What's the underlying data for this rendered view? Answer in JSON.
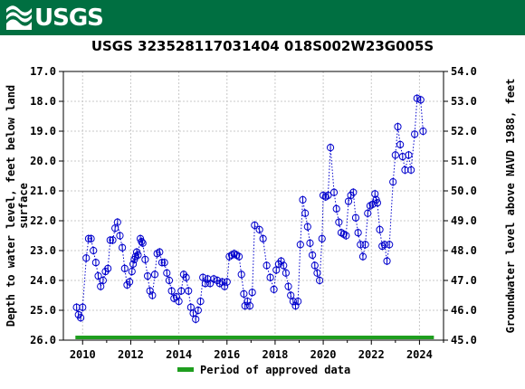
{
  "banner": {
    "logo_text": "USGS",
    "color": "#006f41"
  },
  "chart_data": {
    "type": "scatter",
    "title": "USGS 323528117031404 018S002W23G005S",
    "ylabel_left": "Depth to water level, feet below land surface",
    "ylabel_left_lines": [
      "Depth to water level, feet below land",
      "surface"
    ],
    "ylabel_right": "Groundwater level above NAVD 1988, feet",
    "x_ticks": [
      2010,
      2012,
      2014,
      2016,
      2018,
      2020,
      2022,
      2024
    ],
    "xlim": [
      2009.2,
      2025.0
    ],
    "y_ticks_left": [
      "17.0",
      "18.0",
      "19.0",
      "20.0",
      "21.0",
      "22.0",
      "23.0",
      "24.0",
      "25.0",
      "26.0"
    ],
    "ylim_left": [
      17.0,
      26.0
    ],
    "y_ticks_right": [
      "45.0",
      "46.0",
      "47.0",
      "48.0",
      "49.0",
      "50.0",
      "51.0",
      "52.0",
      "53.0",
      "54.0"
    ],
    "ylim_right": [
      54.0,
      45.0
    ],
    "marker_color": "#0000cc",
    "line_style": "dotted",
    "grid": true,
    "legend_position": "bottom",
    "legend": [
      {
        "label": "Period of approved data",
        "color": "#1f9e1f"
      }
    ],
    "approved_period": [
      2009.7,
      2024.6
    ],
    "series": [
      {
        "points": [
          [
            2009.75,
            24.9
          ],
          [
            2009.83,
            25.15
          ],
          [
            2009.92,
            25.25
          ],
          [
            2010.0,
            24.9
          ],
          [
            2010.15,
            23.25
          ],
          [
            2010.25,
            22.6
          ],
          [
            2010.35,
            22.6
          ],
          [
            2010.45,
            23.0
          ],
          [
            2010.55,
            23.4
          ],
          [
            2010.65,
            23.85
          ],
          [
            2010.75,
            24.2
          ],
          [
            2010.85,
            24.0
          ],
          [
            2010.95,
            23.7
          ],
          [
            2011.05,
            23.6
          ],
          [
            2011.15,
            22.65
          ],
          [
            2011.25,
            22.65
          ],
          [
            2011.35,
            22.25
          ],
          [
            2011.45,
            22.05
          ],
          [
            2011.55,
            22.5
          ],
          [
            2011.65,
            22.9
          ],
          [
            2011.75,
            23.6
          ],
          [
            2011.85,
            24.15
          ],
          [
            2011.95,
            24.05
          ],
          [
            2012.05,
            23.7
          ],
          [
            2012.1,
            23.45
          ],
          [
            2012.15,
            23.3
          ],
          [
            2012.2,
            23.2
          ],
          [
            2012.25,
            23.05
          ],
          [
            2012.3,
            23.15
          ],
          [
            2012.4,
            22.6
          ],
          [
            2012.45,
            22.7
          ],
          [
            2012.5,
            22.75
          ],
          [
            2012.6,
            23.3
          ],
          [
            2012.7,
            23.85
          ],
          [
            2012.8,
            24.35
          ],
          [
            2012.9,
            24.5
          ],
          [
            2013.0,
            23.8
          ],
          [
            2013.1,
            23.1
          ],
          [
            2013.2,
            23.05
          ],
          [
            2013.3,
            23.4
          ],
          [
            2013.4,
            23.4
          ],
          [
            2013.5,
            23.75
          ],
          [
            2013.6,
            24.0
          ],
          [
            2013.7,
            24.35
          ],
          [
            2013.8,
            24.6
          ],
          [
            2013.9,
            24.55
          ],
          [
            2014.0,
            24.7
          ],
          [
            2014.1,
            24.35
          ],
          [
            2014.2,
            23.8
          ],
          [
            2014.3,
            23.9
          ],
          [
            2014.4,
            24.35
          ],
          [
            2014.5,
            24.9
          ],
          [
            2014.6,
            25.1
          ],
          [
            2014.7,
            25.3
          ],
          [
            2014.8,
            25.0
          ],
          [
            2014.9,
            24.7
          ],
          [
            2015.0,
            23.9
          ],
          [
            2015.1,
            24.1
          ],
          [
            2015.2,
            23.95
          ],
          [
            2015.3,
            24.1
          ],
          [
            2015.45,
            23.95
          ],
          [
            2015.6,
            24.0
          ],
          [
            2015.7,
            24.1
          ],
          [
            2015.8,
            24.05
          ],
          [
            2015.9,
            24.2
          ],
          [
            2016.0,
            24.05
          ],
          [
            2016.1,
            23.2
          ],
          [
            2016.2,
            23.15
          ],
          [
            2016.3,
            23.1
          ],
          [
            2016.4,
            23.15
          ],
          [
            2016.5,
            23.2
          ],
          [
            2016.6,
            23.8
          ],
          [
            2016.7,
            24.45
          ],
          [
            2016.75,
            24.85
          ],
          [
            2016.85,
            24.7
          ],
          [
            2016.95,
            24.85
          ],
          [
            2017.05,
            24.4
          ],
          [
            2017.15,
            22.15
          ],
          [
            2017.35,
            22.3
          ],
          [
            2017.5,
            22.6
          ],
          [
            2017.65,
            23.5
          ],
          [
            2017.8,
            23.9
          ],
          [
            2017.95,
            24.3
          ],
          [
            2018.05,
            23.65
          ],
          [
            2018.15,
            23.45
          ],
          [
            2018.25,
            23.35
          ],
          [
            2018.35,
            23.5
          ],
          [
            2018.45,
            23.75
          ],
          [
            2018.55,
            24.2
          ],
          [
            2018.65,
            24.5
          ],
          [
            2018.75,
            24.7
          ],
          [
            2018.85,
            24.85
          ],
          [
            2018.95,
            24.7
          ],
          [
            2019.05,
            22.8
          ],
          [
            2019.15,
            21.3
          ],
          [
            2019.25,
            21.75
          ],
          [
            2019.35,
            22.2
          ],
          [
            2019.45,
            22.75
          ],
          [
            2019.55,
            23.15
          ],
          [
            2019.65,
            23.5
          ],
          [
            2019.75,
            23.75
          ],
          [
            2019.85,
            24.0
          ],
          [
            2019.95,
            22.6
          ],
          [
            2020.0,
            21.15
          ],
          [
            2020.1,
            21.2
          ],
          [
            2020.2,
            21.15
          ],
          [
            2020.3,
            19.55
          ],
          [
            2020.45,
            21.05
          ],
          [
            2020.55,
            21.6
          ],
          [
            2020.65,
            22.05
          ],
          [
            2020.75,
            22.4
          ],
          [
            2020.85,
            22.45
          ],
          [
            2020.95,
            22.5
          ],
          [
            2021.05,
            21.35
          ],
          [
            2021.15,
            21.15
          ],
          [
            2021.25,
            21.05
          ],
          [
            2021.35,
            21.9
          ],
          [
            2021.45,
            22.4
          ],
          [
            2021.55,
            22.8
          ],
          [
            2021.65,
            23.2
          ],
          [
            2021.75,
            22.8
          ],
          [
            2021.85,
            21.75
          ],
          [
            2021.95,
            21.5
          ],
          [
            2022.05,
            21.45
          ],
          [
            2022.15,
            21.1
          ],
          [
            2022.2,
            21.3
          ],
          [
            2022.25,
            21.4
          ],
          [
            2022.35,
            22.3
          ],
          [
            2022.45,
            22.85
          ],
          [
            2022.55,
            22.8
          ],
          [
            2022.65,
            23.35
          ],
          [
            2022.75,
            22.8
          ],
          [
            2022.9,
            20.7
          ],
          [
            2023.0,
            19.8
          ],
          [
            2023.1,
            18.85
          ],
          [
            2023.2,
            19.45
          ],
          [
            2023.3,
            19.85
          ],
          [
            2023.4,
            20.3
          ],
          [
            2023.55,
            19.8
          ],
          [
            2023.65,
            20.3
          ],
          [
            2023.8,
            19.1
          ],
          [
            2023.9,
            17.9
          ],
          [
            2024.05,
            17.95
          ],
          [
            2024.15,
            19.0
          ]
        ]
      }
    ]
  }
}
